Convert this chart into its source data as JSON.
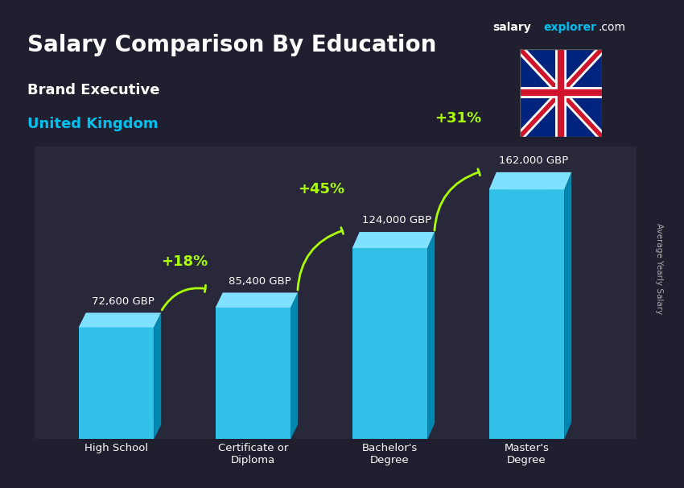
{
  "title": "Salary Comparison By Education",
  "subtitle1": "Brand Executive",
  "subtitle2": "United Kingdom",
  "categories": [
    "High School",
    "Certificate or\nDiploma",
    "Bachelor's\nDegree",
    "Master's\nDegree"
  ],
  "values": [
    72600,
    85400,
    124000,
    162000
  ],
  "labels": [
    "72,600 GBP",
    "85,400 GBP",
    "124,000 GBP",
    "162,000 GBP"
  ],
  "pct_changes": [
    "+18%",
    "+45%",
    "+31%"
  ],
  "bar_color_top": "#00c0f0",
  "bar_color_mid": "#00a0d0",
  "bar_color_dark": "#007ab0",
  "bar_color_side": "#005a90",
  "background_color": "#1a1a2e",
  "title_color": "#ffffff",
  "subtitle1_color": "#ffffff",
  "subtitle2_color": "#00c0f0",
  "label_color": "#ffffff",
  "pct_color": "#aaff00",
  "axis_label_color": "#ffffff",
  "brand_color1": "#ffffff",
  "brand_color2": "#00c0f0",
  "ylabel": "Average Yearly Salary",
  "ylim": [
    0,
    190000
  ],
  "bar_width": 0.55
}
